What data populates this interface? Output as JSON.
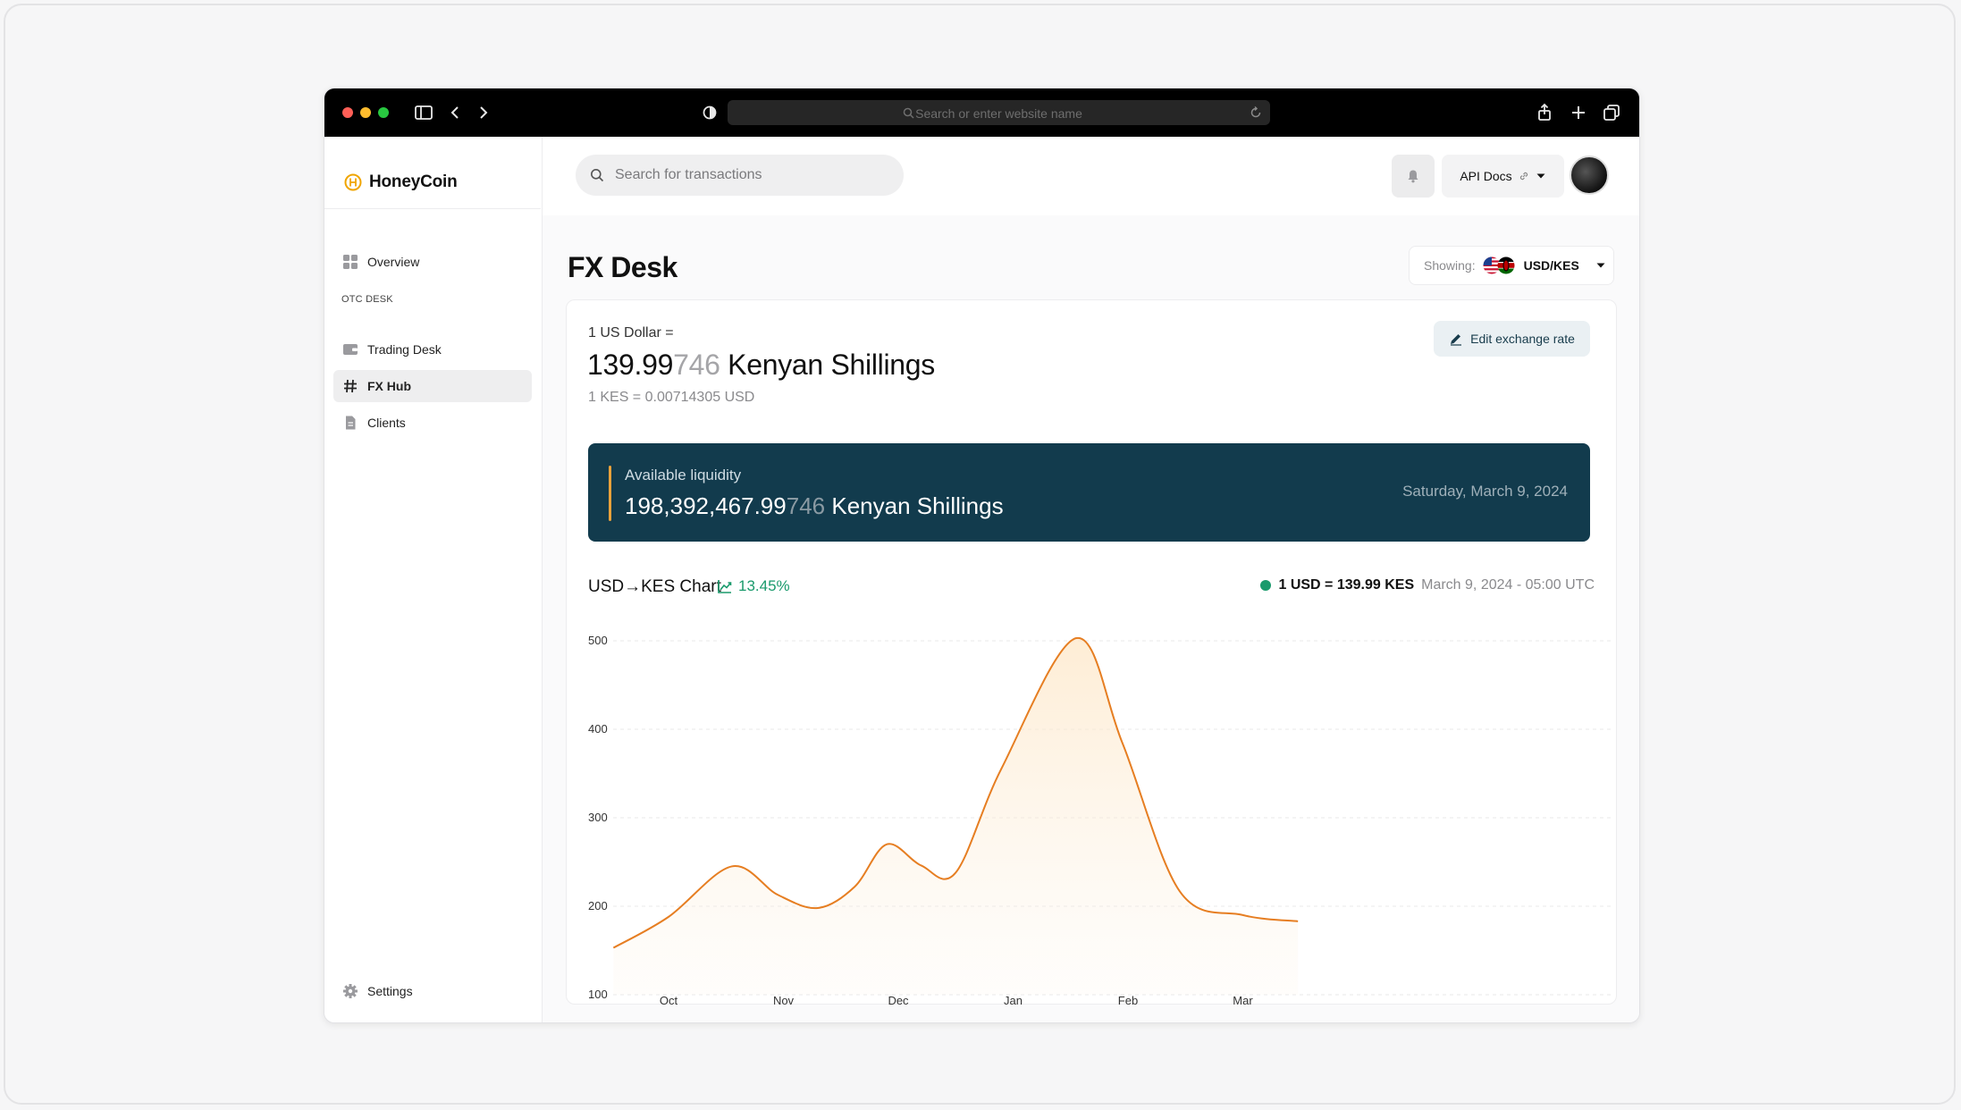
{
  "browser": {
    "url_placeholder": "Search or enter website name"
  },
  "sidebar": {
    "logo": "HoneyCoin",
    "section_label": "OTC DESK",
    "items": [
      {
        "label": "Overview",
        "icon": "grid-icon"
      },
      {
        "label": "Trading Desk",
        "icon": "wallet-icon"
      },
      {
        "label": "FX Hub",
        "icon": "hash-icon",
        "active": true
      },
      {
        "label": "Clients",
        "icon": "document-icon"
      }
    ],
    "settings_label": "Settings"
  },
  "topbar": {
    "search_placeholder": "Search for transactions",
    "api_docs_label": "API Docs"
  },
  "page": {
    "title": "FX Desk",
    "showing_label": "Showing:",
    "pair": "USD/KES"
  },
  "rate": {
    "caption": "1 US Dollar =",
    "value_main": "139.99",
    "value_dim": "746",
    "currency": " Kenyan Shillings",
    "inverse": "1 KES = 0.00714305 USD",
    "edit_label": "Edit exchange rate"
  },
  "liquidity": {
    "label": "Available liquidity",
    "value_main": "198,392,467.99",
    "value_dim": "746",
    "currency": " Kenyan Shillings",
    "date": "Saturday, March 9, 2024"
  },
  "chart_header": {
    "title": "USD→KES Chart",
    "change": "13.45%",
    "legend_rate": "1 USD = 139.99 KES",
    "legend_date": "March 9, 2024 - 05:00 UTC"
  },
  "colors": {
    "accent": "#e67e22",
    "liquidity_bg": "#123b4d",
    "positive": "#1a9a6c"
  },
  "chart_data": {
    "type": "area",
    "x": [
      "Oct",
      "Nov",
      "Dec",
      "Jan",
      "Feb",
      "Mar"
    ],
    "ylim": [
      100,
      500
    ],
    "yticks": [
      500,
      400,
      300,
      200,
      100
    ],
    "series": [
      {
        "points": [
          {
            "x": -0.48,
            "y": 153
          },
          {
            "x": 0.0,
            "y": 188
          },
          {
            "x": 0.55,
            "y": 245
          },
          {
            "x": 0.95,
            "y": 213
          },
          {
            "x": 1.3,
            "y": 198
          },
          {
            "x": 1.62,
            "y": 222
          },
          {
            "x": 1.9,
            "y": 270
          },
          {
            "x": 2.2,
            "y": 246
          },
          {
            "x": 2.5,
            "y": 238
          },
          {
            "x": 2.9,
            "y": 356
          },
          {
            "x": 3.55,
            "y": 503
          },
          {
            "x": 3.95,
            "y": 385
          },
          {
            "x": 4.45,
            "y": 217
          },
          {
            "x": 5.0,
            "y": 190
          },
          {
            "x": 5.48,
            "y": 183
          }
        ]
      }
    ]
  }
}
